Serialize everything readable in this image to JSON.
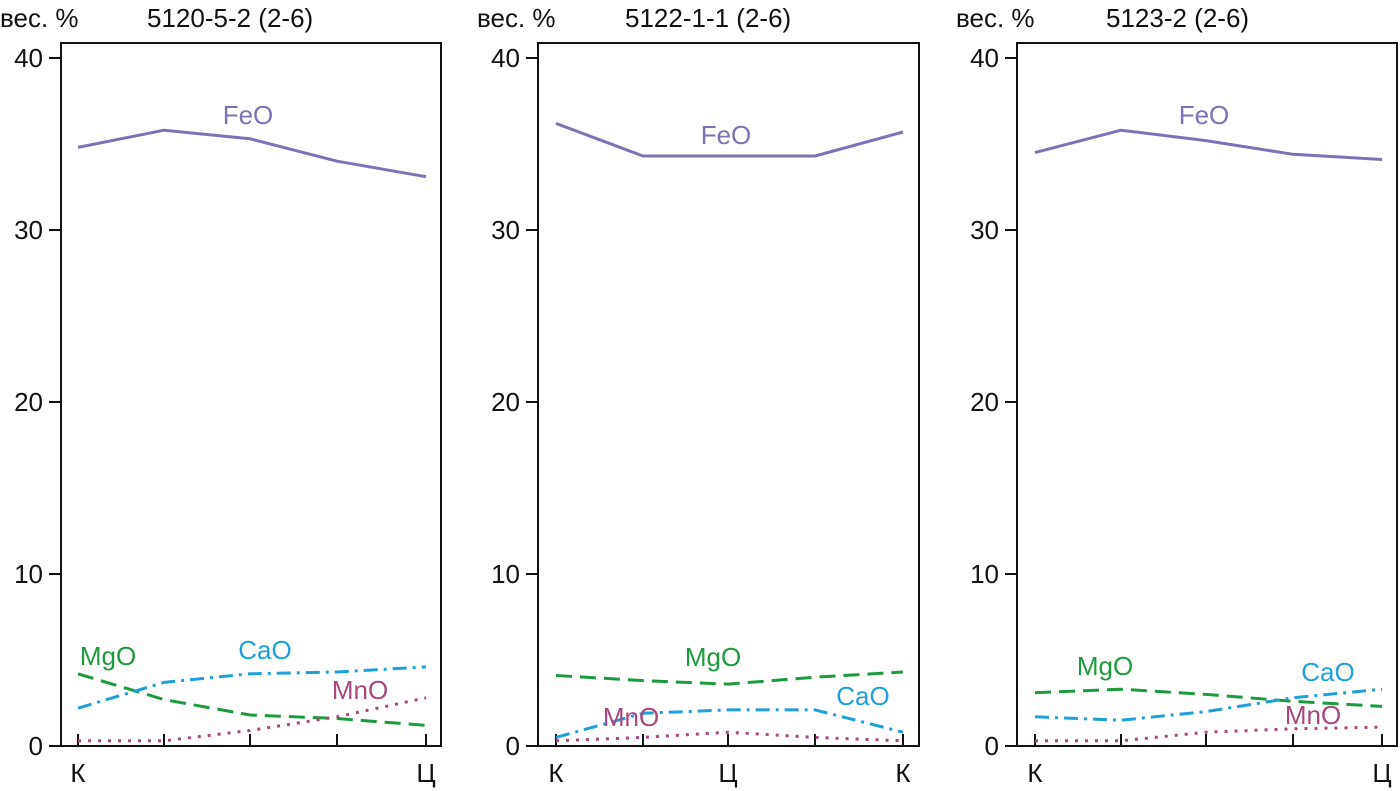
{
  "chart_data": [
    {
      "type": "line",
      "title": "5120-5-2 (2-6)",
      "ylabel": "вес. %",
      "xlabel": "",
      "ylim": [
        0,
        40
      ],
      "yticks": [
        0,
        10,
        20,
        30,
        40
      ],
      "x": [
        1,
        2,
        3,
        4,
        5
      ],
      "xtick_labels": [
        "К",
        "",
        "",
        "",
        "Ц"
      ],
      "grid": false,
      "series": [
        {
          "name": "FeO",
          "color": "#7b73b5",
          "style": "solid",
          "values": [
            34.8,
            35.8,
            35.3,
            34.0,
            33.1
          ]
        },
        {
          "name": "MgO",
          "color": "#1e9a3e",
          "style": "dashed",
          "values": [
            4.2,
            2.7,
            1.8,
            1.6,
            1.2
          ]
        },
        {
          "name": "CaO",
          "color": "#1fa0d8",
          "style": "dashdot",
          "values": [
            2.2,
            3.7,
            4.2,
            4.3,
            4.6
          ]
        },
        {
          "name": "MnO",
          "color": "#a8487f",
          "style": "dotted",
          "values": [
            0.3,
            0.3,
            0.9,
            1.7,
            2.8
          ]
        }
      ]
    },
    {
      "type": "line",
      "title": "5122-1-1 (2-6)",
      "ylabel": "вес. %",
      "xlabel": "",
      "ylim": [
        0,
        40
      ],
      "yticks": [
        0,
        10,
        20,
        30,
        40
      ],
      "x": [
        1,
        2,
        3,
        4,
        5
      ],
      "xtick_labels": [
        "К",
        "",
        "Ц",
        "",
        "К"
      ],
      "grid": false,
      "series": [
        {
          "name": "FeO",
          "color": "#7b73b5",
          "style": "solid",
          "values": [
            36.2,
            34.3,
            34.3,
            34.3,
            35.7
          ]
        },
        {
          "name": "MgO",
          "color": "#1e9a3e",
          "style": "dashed",
          "values": [
            4.1,
            3.8,
            3.6,
            4.0,
            4.3
          ]
        },
        {
          "name": "CaO",
          "color": "#1fa0d8",
          "style": "dashdot",
          "values": [
            0.5,
            1.9,
            2.1,
            2.1,
            0.8
          ]
        },
        {
          "name": "MnO",
          "color": "#a8487f",
          "style": "dotted",
          "values": [
            0.3,
            0.5,
            0.8,
            0.5,
            0.3
          ]
        }
      ]
    },
    {
      "type": "line",
      "title": "5123-2 (2-6)",
      "ylabel": "вес. %",
      "xlabel": "",
      "ylim": [
        0,
        40
      ],
      "yticks": [
        0,
        10,
        20,
        30,
        40
      ],
      "x": [
        1,
        2,
        3,
        4,
        5
      ],
      "xtick_labels": [
        "К",
        "",
        "",
        "",
        "Ц"
      ],
      "grid": false,
      "series": [
        {
          "name": "FeO",
          "color": "#7b73b5",
          "style": "solid",
          "values": [
            34.5,
            35.8,
            35.2,
            34.4,
            34.1
          ]
        },
        {
          "name": "MgO",
          "color": "#1e9a3e",
          "style": "dashed",
          "values": [
            3.1,
            3.3,
            3.0,
            2.6,
            2.3
          ]
        },
        {
          "name": "CaO",
          "color": "#1fa0d8",
          "style": "dashdot",
          "values": [
            1.7,
            1.5,
            2.0,
            2.8,
            3.3
          ]
        },
        {
          "name": "MnO",
          "color": "#a8487f",
          "style": "dotted",
          "values": [
            0.3,
            0.3,
            0.8,
            1.0,
            1.1
          ]
        }
      ]
    }
  ]
}
